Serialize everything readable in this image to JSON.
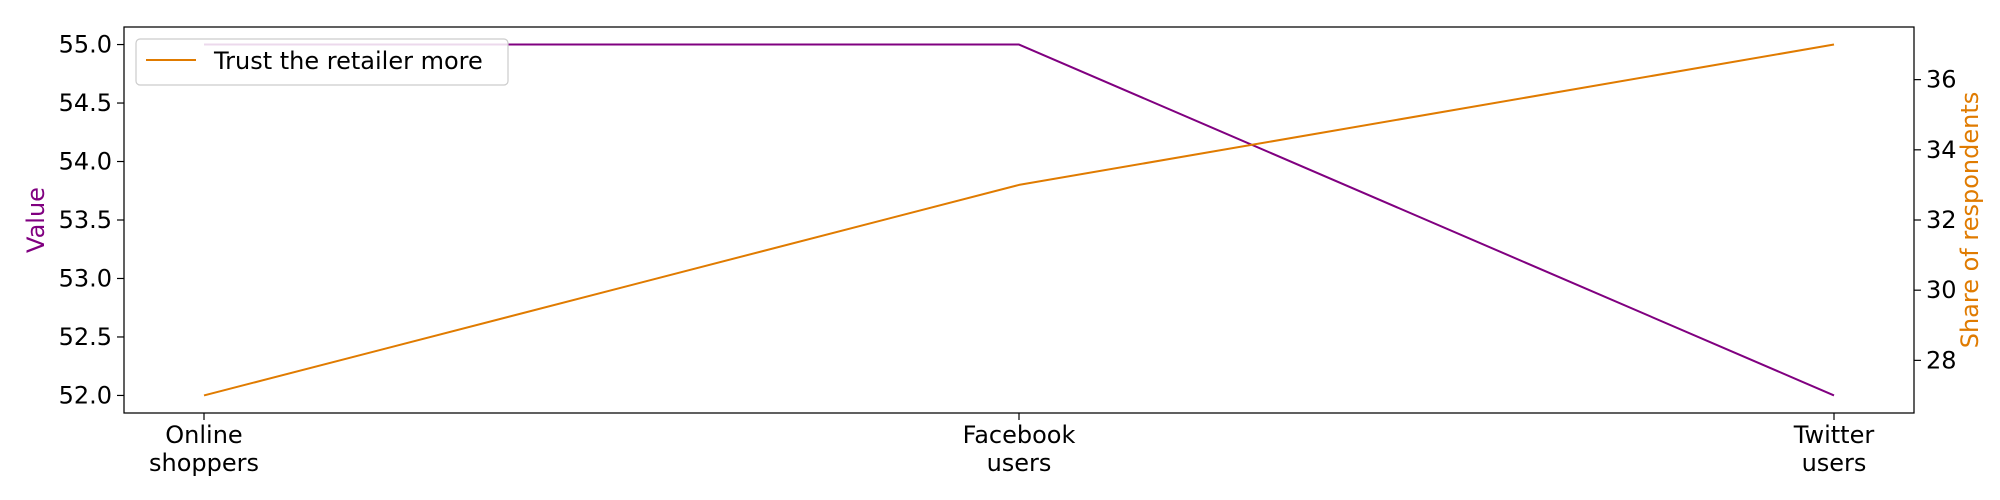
{
  "chart_data": {
    "type": "line",
    "categories": [
      "Online\nshoppers",
      "Facebook\nusers",
      "Twitter\nusers"
    ],
    "left_axis": {
      "label": "Value",
      "color": "#800080",
      "ylim": [
        51.85,
        55.15
      ],
      "ticks": [
        52.0,
        52.5,
        53.0,
        53.5,
        54.0,
        54.5,
        55.0
      ],
      "tick_labels": [
        "52.0",
        "52.5",
        "53.0",
        "53.5",
        "54.0",
        "54.5",
        "55.0"
      ]
    },
    "right_axis": {
      "label": "Share of respondents",
      "color": "#e07b00",
      "ylim": [
        26.5,
        37.5
      ],
      "ticks": [
        28,
        30,
        32,
        34,
        36
      ],
      "tick_labels": [
        "28",
        "30",
        "32",
        "34",
        "36"
      ]
    },
    "series": [
      {
        "values": [
          55,
          55,
          52
        ],
        "axis": "left",
        "color": "#800080"
      },
      {
        "name": "Trust the retailer more",
        "values": [
          27,
          33,
          37
        ],
        "axis": "right",
        "color": "#e07b00"
      }
    ],
    "legend": {
      "position": "top-left",
      "entries": [
        "Trust the retailer more"
      ]
    },
    "grid": false
  }
}
